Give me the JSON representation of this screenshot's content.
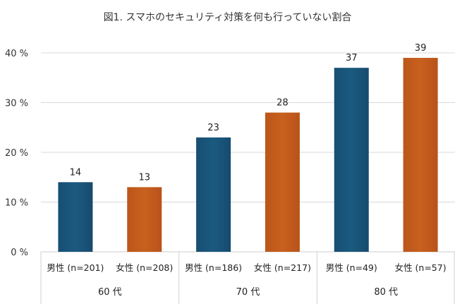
{
  "chart_data": {
    "type": "bar",
    "title": "図1. スマホのセキュリティ対策を何も行っていない割合",
    "xlabel": "",
    "ylabel": "",
    "ylim": [
      0,
      40
    ],
    "yticks": [
      0,
      10,
      20,
      30,
      40
    ],
    "ytick_labels": [
      "0 %",
      "10 %",
      "20 %",
      "30 %",
      "40 %"
    ],
    "grid": true,
    "legend": "none",
    "groups": [
      {
        "label": "60 代",
        "bars": [
          {
            "label": "男性 (n=201)",
            "value": 14,
            "series": "male"
          },
          {
            "label": "女性 (n=208)",
            "value": 13,
            "series": "female"
          }
        ]
      },
      {
        "label": "70 代",
        "bars": [
          {
            "label": "男性 (n=186)",
            "value": 23,
            "series": "male"
          },
          {
            "label": "女性 (n=217)",
            "value": 28,
            "series": "female"
          }
        ]
      },
      {
        "label": "80 代",
        "bars": [
          {
            "label": "男性 (n=49)",
            "value": 37,
            "series": "male"
          },
          {
            "label": "女性 (n=57)",
            "value": 39,
            "series": "female"
          }
        ]
      }
    ],
    "series_colors": {
      "male": "#1b5a80",
      "female": "#c8601e"
    }
  }
}
